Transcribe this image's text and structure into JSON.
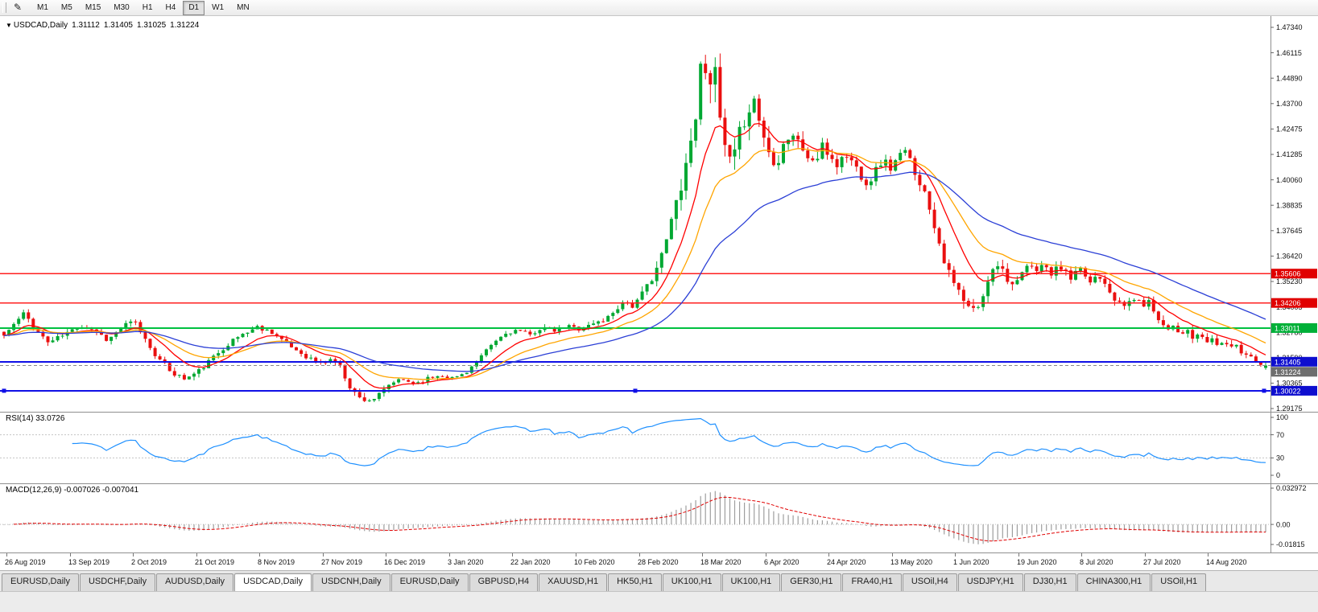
{
  "toolbar": {
    "icon_glyph": "✎",
    "timeframes": [
      "M1",
      "M5",
      "M15",
      "M30",
      "H1",
      "H4",
      "D1",
      "W1",
      "MN"
    ],
    "active": "D1"
  },
  "header": {
    "arrow": "▼",
    "title": "USDCAD,Daily",
    "open": "1.31112",
    "high": "1.31405",
    "low": "1.31025",
    "close": "1.31224"
  },
  "price_scale": {
    "labels": [
      "1.47340",
      "1.46115",
      "1.44890",
      "1.43700",
      "1.42475",
      "1.41285",
      "1.40060",
      "1.38835",
      "1.37645",
      "1.36420",
      "1.35230",
      "1.34005",
      "1.32780",
      "1.31590",
      "1.30365",
      "1.29175"
    ]
  },
  "date_axis": {
    "labels": [
      "26 Aug 2019",
      "13 Sep 2019",
      "2 Oct 2019",
      "21 Oct 2019",
      "8 Nov 2019",
      "27 Nov 2019",
      "16 Dec 2019",
      "3 Jan 2020",
      "22 Jan 2020",
      "10 Feb 2020",
      "28 Feb 2020",
      "18 Mar 2020",
      "6 Apr 2020",
      "24 Apr 2020",
      "13 May 2020",
      "1 Jun 2020",
      "19 Jun 2020",
      "8 Jul 2020",
      "27 Jul 2020",
      "14 Aug 2020"
    ]
  },
  "tabs": {
    "items": [
      "EURUSD,Daily",
      "USDCHF,Daily",
      "AUDUSD,Daily",
      "USDCAD,Daily",
      "USDCNH,Daily",
      "EURUSD,Daily",
      "GBPUSD,H4",
      "XAUUSD,H1",
      "HK50,H1",
      "UK100,H1",
      "UK100,H1",
      "GER30,H1",
      "FRA40,H1",
      "USOil,H4",
      "USDJPY,H1",
      "DJ30,H1",
      "CHINA300,H1",
      "USOil,H1"
    ],
    "active_index": 3
  },
  "chart_data": {
    "type": "candlestick",
    "symbol": "USDCAD",
    "period": "Daily",
    "ylim": [
      1.29175,
      1.4734
    ],
    "t_max": 0.996,
    "candle_count": 260,
    "seed": 11,
    "colors": {
      "up": "#00A832",
      "down": "#EA0F0F",
      "background": "#FFFFFF"
    },
    "ohlc_last": {
      "open": 1.31112,
      "high": 1.31405,
      "low": 1.31025,
      "close": 1.31224
    },
    "clamp": {
      "max_high": 1.4685,
      "min_low": 1.2948
    },
    "price_waypoints": [
      [
        0.0,
        1.3265
      ],
      [
        0.008,
        1.332
      ],
      [
        0.016,
        1.3372
      ],
      [
        0.025,
        1.3295
      ],
      [
        0.035,
        1.3232
      ],
      [
        0.048,
        1.3272
      ],
      [
        0.06,
        1.3312
      ],
      [
        0.072,
        1.3292
      ],
      [
        0.082,
        1.3242
      ],
      [
        0.094,
        1.3312
      ],
      [
        0.103,
        1.3332
      ],
      [
        0.112,
        1.3242
      ],
      [
        0.122,
        1.3152
      ],
      [
        0.133,
        1.3088
      ],
      [
        0.143,
        1.3058
      ],
      [
        0.153,
        1.3092
      ],
      [
        0.163,
        1.3148
      ],
      [
        0.175,
        1.3218
      ],
      [
        0.188,
        1.3272
      ],
      [
        0.2,
        1.3306
      ],
      [
        0.212,
        1.3282
      ],
      [
        0.224,
        1.3222
      ],
      [
        0.238,
        1.3168
      ],
      [
        0.25,
        1.3132
      ],
      [
        0.26,
        1.3158
      ],
      [
        0.266,
        1.3112
      ],
      [
        0.272,
        1.3032
      ],
      [
        0.28,
        1.2968
      ],
      [
        0.29,
        1.2958
      ],
      [
        0.298,
        1.2988
      ],
      [
        0.306,
        1.3042
      ],
      [
        0.315,
        1.3052
      ],
      [
        0.325,
        1.3038
      ],
      [
        0.335,
        1.3062
      ],
      [
        0.345,
        1.3078
      ],
      [
        0.355,
        1.3062
      ],
      [
        0.365,
        1.3092
      ],
      [
        0.375,
        1.3152
      ],
      [
        0.385,
        1.3222
      ],
      [
        0.395,
        1.3272
      ],
      [
        0.405,
        1.3292
      ],
      [
        0.415,
        1.3266
      ],
      [
        0.425,
        1.3306
      ],
      [
        0.435,
        1.3286
      ],
      [
        0.445,
        1.3312
      ],
      [
        0.455,
        1.3296
      ],
      [
        0.465,
        1.3322
      ],
      [
        0.475,
        1.3342
      ],
      [
        0.483,
        1.3392
      ],
      [
        0.49,
        1.3432
      ],
      [
        0.497,
        1.3402
      ],
      [
        0.505,
        1.3472
      ],
      [
        0.513,
        1.3562
      ],
      [
        0.52,
        1.3652
      ],
      [
        0.527,
        1.3812
      ],
      [
        0.534,
        1.3982
      ],
      [
        0.541,
        1.4152
      ],
      [
        0.547,
        1.4362
      ],
      [
        0.552,
        1.4642
      ],
      [
        0.556,
        1.4482
      ],
      [
        0.56,
        1.4562
      ],
      [
        0.565,
        1.4302
      ],
      [
        0.57,
        1.4122
      ],
      [
        0.575,
        1.4062
      ],
      [
        0.58,
        1.4202
      ],
      [
        0.586,
        1.4332
      ],
      [
        0.592,
        1.4392
      ],
      [
        0.598,
        1.4252
      ],
      [
        0.604,
        1.4132
      ],
      [
        0.61,
        1.4092
      ],
      [
        0.616,
        1.4192
      ],
      [
        0.622,
        1.4232
      ],
      [
        0.628,
        1.4176
      ],
      [
        0.634,
        1.4122
      ],
      [
        0.64,
        1.4086
      ],
      [
        0.646,
        1.4162
      ],
      [
        0.652,
        1.4122
      ],
      [
        0.658,
        1.4076
      ],
      [
        0.664,
        1.4132
      ],
      [
        0.67,
        1.4092
      ],
      [
        0.676,
        1.4036
      ],
      [
        0.682,
        1.3986
      ],
      [
        0.688,
        1.4052
      ],
      [
        0.694,
        1.4106
      ],
      [
        0.7,
        1.4062
      ],
      [
        0.706,
        1.4116
      ],
      [
        0.712,
        1.4142
      ],
      [
        0.718,
        1.4062
      ],
      [
        0.724,
        1.3986
      ],
      [
        0.73,
        1.3892
      ],
      [
        0.736,
        1.3762
      ],
      [
        0.742,
        1.3632
      ],
      [
        0.748,
        1.3526
      ],
      [
        0.753,
        1.3482
      ],
      [
        0.758,
        1.3422
      ],
      [
        0.763,
        1.3382
      ],
      [
        0.768,
        1.3396
      ],
      [
        0.773,
        1.3442
      ],
      [
        0.778,
        1.3562
      ],
      [
        0.783,
        1.3622
      ],
      [
        0.788,
        1.3582
      ],
      [
        0.793,
        1.3532
      ],
      [
        0.798,
        1.3492
      ],
      [
        0.803,
        1.3546
      ],
      [
        0.808,
        1.3602
      ],
      [
        0.813,
        1.3572
      ],
      [
        0.818,
        1.3606
      ],
      [
        0.823,
        1.3582
      ],
      [
        0.828,
        1.3552
      ],
      [
        0.833,
        1.3602
      ],
      [
        0.838,
        1.3566
      ],
      [
        0.843,
        1.3526
      ],
      [
        0.848,
        1.3582
      ],
      [
        0.853,
        1.3556
      ],
      [
        0.858,
        1.3516
      ],
      [
        0.863,
        1.3562
      ],
      [
        0.868,
        1.3532
      ],
      [
        0.873,
        1.3482
      ],
      [
        0.878,
        1.3432
      ],
      [
        0.883,
        1.3396
      ],
      [
        0.888,
        1.3426
      ],
      [
        0.893,
        1.3446
      ],
      [
        0.898,
        1.3406
      ],
      [
        0.903,
        1.3432
      ],
      [
        0.908,
        1.3382
      ],
      [
        0.913,
        1.3336
      ],
      [
        0.918,
        1.3292
      ],
      [
        0.923,
        1.3322
      ],
      [
        0.928,
        1.3272
      ],
      [
        0.933,
        1.3296
      ],
      [
        0.938,
        1.3246
      ],
      [
        0.943,
        1.3276
      ],
      [
        0.948,
        1.3226
      ],
      [
        0.953,
        1.3256
      ],
      [
        0.958,
        1.3216
      ],
      [
        0.963,
        1.3246
      ],
      [
        0.968,
        1.3196
      ],
      [
        0.973,
        1.3226
      ],
      [
        0.978,
        1.3166
      ],
      [
        0.983,
        1.3186
      ],
      [
        0.988,
        1.3146
      ],
      [
        0.993,
        1.3118
      ],
      [
        0.996,
        1.3122
      ]
    ],
    "volatility_waypoints": [
      [
        0.0,
        0.0042
      ],
      [
        0.1,
        0.004
      ],
      [
        0.14,
        0.0045
      ],
      [
        0.25,
        0.0038
      ],
      [
        0.28,
        0.0052
      ],
      [
        0.31,
        0.004
      ],
      [
        0.36,
        0.0028
      ],
      [
        0.46,
        0.0036
      ],
      [
        0.5,
        0.005
      ],
      [
        0.52,
        0.009
      ],
      [
        0.545,
        0.018
      ],
      [
        0.555,
        0.024
      ],
      [
        0.57,
        0.018
      ],
      [
        0.6,
        0.013
      ],
      [
        0.65,
        0.0085
      ],
      [
        0.7,
        0.007
      ],
      [
        0.73,
        0.008
      ],
      [
        0.755,
        0.0085
      ],
      [
        0.78,
        0.0075
      ],
      [
        0.82,
        0.006
      ],
      [
        0.87,
        0.0055
      ],
      [
        0.92,
        0.005
      ],
      [
        0.96,
        0.0045
      ],
      [
        1.0,
        0.004
      ]
    ],
    "moving_averages": [
      {
        "name": "ma-fast",
        "period": 10,
        "color": "#FF0000"
      },
      {
        "name": "ma-mid",
        "period": 21,
        "color": "#FFA500"
      },
      {
        "name": "ma-slow",
        "period": 45,
        "color": "#2B3FD6"
      }
    ],
    "hlines": [
      {
        "value": 1.35606,
        "label": "1.35606",
        "color": "#FF2020",
        "label_bg": "#E00000",
        "width": 1.3,
        "selected": false
      },
      {
        "value": 1.34206,
        "label": "1.34206",
        "color": "#FF2020",
        "label_bg": "#E00000",
        "width": 1.3,
        "selected": false
      },
      {
        "value": 1.33011,
        "label": "1.33011",
        "color": "#00C040",
        "label_bg": "#00B038",
        "width": 1.8,
        "selected": false
      },
      {
        "value": 1.31405,
        "label": "1.31405",
        "color": "#1010E6",
        "label_bg": "#0E0ECF",
        "width": 2,
        "selected": false
      },
      {
        "value": 1.30022,
        "label": "1.30022",
        "color": "#1010E6",
        "label_bg": "#0E0ECF",
        "width": 2,
        "selected": true
      }
    ],
    "bid_line": {
      "value": 1.31224,
      "label": "1.31224",
      "label_bg": "#6E6E6E"
    },
    "indicators": {
      "rsi": {
        "title": "RSI(14) 33.0726",
        "period": 14,
        "value": 33.0726,
        "color": "#1E90FF",
        "scale_labels": [
          "100",
          "70",
          "30",
          "0"
        ],
        "scale_values": [
          100,
          70,
          30,
          0
        ],
        "level_lines": [
          70,
          30
        ]
      },
      "macd": {
        "title": "MACD(12,26,9) -0.007026 -0.007041",
        "fast": 12,
        "slow": 26,
        "signal": 9,
        "macd_value": -0.007026,
        "signal_value": -0.007041,
        "hist_color": "#9E9E9E",
        "signal_color": "#E00000",
        "ylim": [
          -0.01815,
          0.032972
        ],
        "scale_labels": [
          "0.032972",
          "0.00",
          "-0.01815"
        ],
        "scale_values": [
          0.032972,
          0,
          -0.01815
        ]
      }
    }
  }
}
